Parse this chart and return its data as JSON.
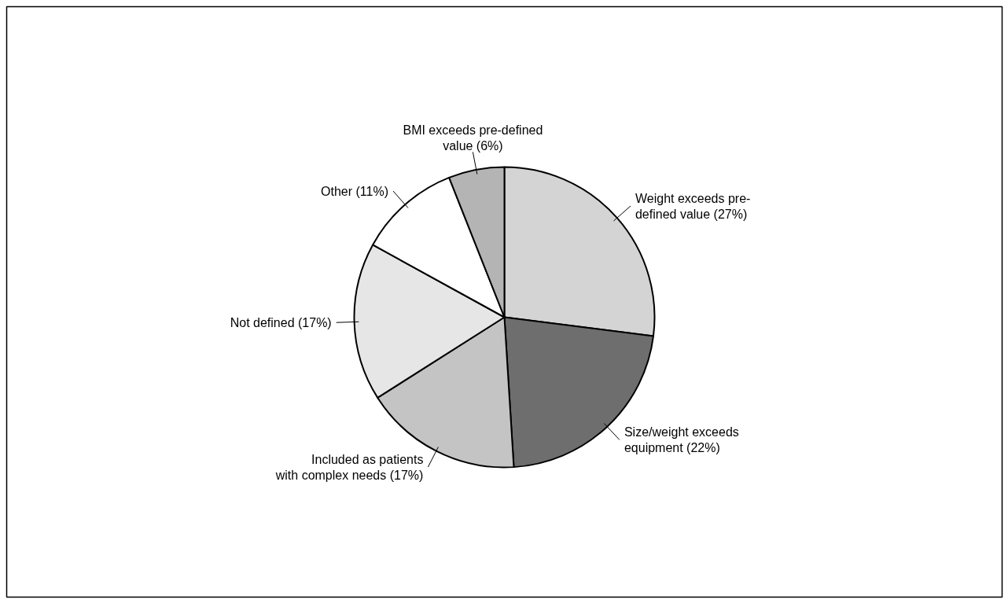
{
  "chart_data": {
    "type": "pie",
    "categories": [
      "Weight exceeds pre-defined value",
      "Size/weight exceeds equipment",
      "Included as patients with complex needs",
      "Not defined",
      "Other",
      "BMI exceeds pre-defined value"
    ],
    "values": [
      27,
      22,
      17,
      17,
      11,
      6
    ],
    "value_labels": [
      "(27%)",
      "(22%)",
      "(17%)",
      "(17%)",
      "(11%)",
      "(6%)"
    ],
    "colors": [
      "#d4d4d4",
      "#6e6e6e",
      "#c4c4c4",
      "#e6e6e6",
      "#ffffff",
      "#b4b4b4"
    ]
  }
}
